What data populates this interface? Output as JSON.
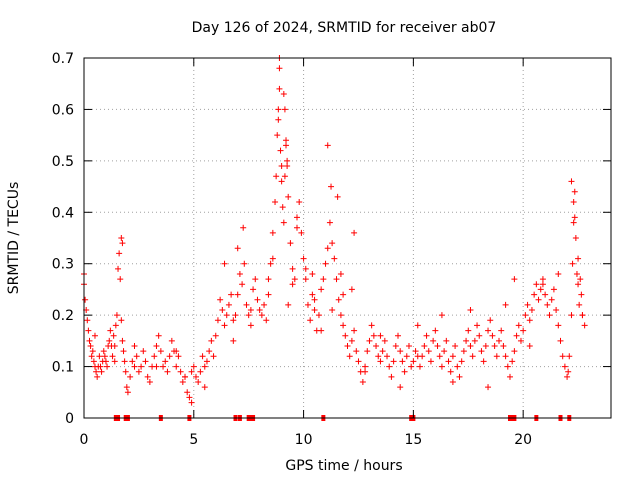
{
  "colors": {
    "series": "#ff0000",
    "grid": "#a0a0a0",
    "axis": "#000000",
    "background": "#ffffff"
  },
  "chart_data": {
    "type": "scatter",
    "title": "Day 126 of 2024, SRMTID for receiver ab07",
    "xlabel": "GPS time / hours",
    "ylabel": "SRMTID / TECUs",
    "xlim": [
      0,
      24
    ],
    "ylim": [
      0,
      0.7
    ],
    "grid": true,
    "marker": "plus",
    "xticks": [
      0,
      5,
      10,
      15,
      20
    ],
    "xtick_labels": [
      "0",
      "5",
      "10",
      "15",
      "20"
    ],
    "yticks": [
      0,
      0.1,
      0.2,
      0.3,
      0.4,
      0.5,
      0.6,
      0.7
    ],
    "ytick_labels": [
      "0",
      "0.1",
      "0.2",
      "0.3",
      "0.4",
      "0.5",
      "0.6",
      "0.7"
    ],
    "series": [
      {
        "name": "SRMTID",
        "x": [
          0.0,
          0.05,
          0.1,
          0.15,
          0.2,
          0.25,
          0.3,
          0.35,
          0.4,
          0.45,
          0.5,
          0.55,
          0.6,
          0.65,
          0.7,
          0.75,
          0.8,
          0.85,
          0.9,
          0.95,
          1.0,
          1.05,
          1.1,
          1.15,
          1.2,
          1.25,
          1.3,
          1.35,
          1.4,
          1.45,
          1.5,
          1.55,
          1.6,
          1.65,
          1.7,
          1.75,
          1.8,
          1.85,
          1.9,
          1.95,
          2.0,
          2.1,
          2.2,
          2.3,
          2.4,
          2.5,
          2.6,
          2.7,
          2.8,
          2.9,
          3.0,
          3.1,
          3.2,
          3.3,
          3.4,
          3.5,
          3.6,
          3.7,
          3.8,
          3.9,
          4.0,
          4.1,
          4.2,
          4.3,
          4.4,
          4.5,
          4.6,
          4.7,
          4.8,
          4.9,
          5.0,
          5.1,
          5.2,
          5.3,
          5.4,
          5.5,
          5.6,
          5.7,
          5.8,
          5.9,
          6.0,
          6.1,
          6.2,
          6.3,
          6.4,
          6.5,
          6.6,
          6.7,
          6.8,
          6.9,
          7.0,
          7.1,
          7.2,
          7.3,
          7.4,
          7.5,
          7.6,
          7.7,
          7.8,
          7.9,
          8.0,
          8.1,
          8.2,
          8.3,
          8.4,
          8.5,
          8.6,
          8.7,
          8.75,
          8.8,
          8.85,
          8.9,
          8.95,
          9.0,
          9.05,
          9.1,
          9.15,
          9.2,
          9.25,
          9.3,
          9.4,
          9.5,
          9.6,
          9.7,
          9.8,
          9.9,
          10.0,
          10.1,
          10.2,
          10.3,
          10.4,
          10.5,
          10.6,
          10.7,
          10.8,
          10.9,
          11.0,
          11.1,
          11.2,
          11.3,
          11.4,
          11.5,
          11.6,
          11.7,
          11.8,
          11.9,
          12.0,
          12.1,
          12.2,
          12.3,
          12.4,
          12.5,
          12.6,
          12.7,
          12.8,
          12.9,
          13.0,
          13.1,
          13.2,
          13.3,
          13.4,
          13.5,
          13.6,
          13.7,
          13.8,
          13.9,
          14.0,
          14.1,
          14.2,
          14.3,
          14.4,
          14.5,
          14.6,
          14.7,
          14.8,
          14.9,
          15.0,
          15.1,
          15.2,
          15.3,
          15.4,
          15.5,
          15.6,
          15.7,
          15.8,
          15.9,
          16.0,
          16.1,
          16.2,
          16.3,
          16.4,
          16.5,
          16.6,
          16.7,
          16.8,
          16.9,
          17.0,
          17.1,
          17.2,
          17.3,
          17.4,
          17.5,
          17.6,
          17.7,
          17.8,
          17.9,
          18.0,
          18.1,
          18.2,
          18.3,
          18.4,
          18.5,
          18.6,
          18.7,
          18.8,
          18.9,
          19.0,
          19.1,
          19.2,
          19.3,
          19.4,
          19.5,
          19.6,
          19.7,
          19.8,
          19.9,
          20.0,
          20.1,
          20.2,
          20.3,
          20.4,
          20.5,
          20.6,
          20.7,
          20.8,
          20.9,
          21.0,
          21.1,
          21.2,
          21.3,
          21.4,
          21.5,
          21.6,
          21.7,
          21.8,
          21.9,
          22.0,
          22.1,
          22.2,
          22.25,
          22.3,
          22.35,
          22.4,
          22.45,
          22.5,
          22.55,
          22.6,
          22.65,
          22.7,
          22.8,
          0.0,
          1.7,
          1.75,
          7.25,
          7.0,
          8.85,
          8.9,
          9.1,
          9.15,
          9.2,
          9.25,
          11.1,
          11.25,
          11.55,
          22.2,
          22.3,
          22.35,
          6.4,
          12.3,
          16.3,
          0.5,
          1.4,
          2.3,
          3.3,
          4.2,
          4.6,
          4.9,
          5.5,
          6.8,
          7.6,
          8.4,
          8.6,
          9.3,
          9.5,
          9.7,
          10.1,
          10.5,
          10.8,
          11.3,
          11.7,
          12.2,
          12.8,
          13.5,
          14.4,
          15.2,
          16.8,
          17.6,
          18.4,
          19.2,
          19.6,
          20.3,
          20.9,
          21.6,
          22.05,
          22.5,
          22.7,
          8.9,
          9.0,
          10.4,
          11.8
        ],
        "y": [
          0.26,
          0.23,
          0.21,
          0.19,
          0.17,
          0.15,
          0.14,
          0.12,
          0.13,
          0.11,
          0.1,
          0.09,
          0.08,
          0.1,
          0.12,
          0.1,
          0.09,
          0.11,
          0.13,
          0.12,
          0.11,
          0.1,
          0.14,
          0.15,
          0.17,
          0.14,
          0.12,
          0.16,
          0.14,
          0.18,
          0.2,
          0.29,
          0.32,
          0.27,
          0.19,
          0.15,
          0.13,
          0.11,
          0.09,
          0.06,
          0.05,
          0.08,
          0.11,
          0.1,
          0.12,
          0.09,
          0.1,
          0.13,
          0.11,
          0.08,
          0.07,
          0.1,
          0.12,
          0.14,
          0.16,
          0.13,
          0.1,
          0.11,
          0.09,
          0.12,
          0.15,
          0.13,
          0.1,
          0.12,
          0.09,
          0.07,
          0.08,
          0.05,
          0.04,
          0.09,
          0.1,
          0.08,
          0.07,
          0.09,
          0.12,
          0.1,
          0.11,
          0.13,
          0.15,
          0.12,
          0.16,
          0.19,
          0.23,
          0.21,
          0.18,
          0.2,
          0.22,
          0.24,
          0.19,
          0.2,
          0.24,
          0.28,
          0.26,
          0.3,
          0.22,
          0.2,
          0.18,
          0.25,
          0.27,
          0.23,
          0.21,
          0.2,
          0.22,
          0.19,
          0.24,
          0.3,
          0.36,
          0.42,
          0.47,
          0.55,
          0.6,
          0.64,
          0.52,
          0.46,
          0.41,
          0.38,
          0.47,
          0.53,
          0.5,
          0.43,
          0.34,
          0.29,
          0.27,
          0.37,
          0.42,
          0.36,
          0.31,
          0.27,
          0.22,
          0.19,
          0.24,
          0.21,
          0.17,
          0.2,
          0.25,
          0.27,
          0.3,
          0.33,
          0.38,
          0.34,
          0.31,
          0.27,
          0.23,
          0.2,
          0.18,
          0.16,
          0.14,
          0.12,
          0.15,
          0.17,
          0.13,
          0.11,
          0.09,
          0.07,
          0.1,
          0.13,
          0.15,
          0.18,
          0.16,
          0.14,
          0.12,
          0.11,
          0.13,
          0.15,
          0.12,
          0.1,
          0.08,
          0.11,
          0.14,
          0.16,
          0.13,
          0.11,
          0.09,
          0.12,
          0.14,
          0.1,
          0.11,
          0.13,
          0.12,
          0.1,
          0.12,
          0.14,
          0.16,
          0.13,
          0.11,
          0.15,
          0.17,
          0.14,
          0.12,
          0.1,
          0.13,
          0.15,
          0.11,
          0.09,
          0.12,
          0.14,
          0.1,
          0.08,
          0.11,
          0.13,
          0.15,
          0.17,
          0.14,
          0.12,
          0.15,
          0.18,
          0.16,
          0.13,
          0.11,
          0.14,
          0.17,
          0.19,
          0.16,
          0.14,
          0.12,
          0.15,
          0.17,
          0.14,
          0.12,
          0.1,
          0.08,
          0.11,
          0.13,
          0.16,
          0.18,
          0.15,
          0.17,
          0.2,
          0.22,
          0.19,
          0.21,
          0.24,
          0.26,
          0.23,
          0.25,
          0.27,
          0.24,
          0.22,
          0.2,
          0.23,
          0.25,
          0.21,
          0.18,
          0.15,
          0.12,
          0.1,
          0.08,
          0.12,
          0.2,
          0.3,
          0.38,
          0.44,
          0.35,
          0.28,
          0.26,
          0.22,
          0.27,
          0.24,
          0.2,
          0.18,
          0.28,
          0.35,
          0.34,
          0.37,
          0.33,
          0.58,
          0.68,
          0.63,
          0.6,
          0.54,
          0.49,
          0.53,
          0.45,
          0.43,
          0.46,
          0.42,
          0.39,
          0.3,
          0.36,
          0.2,
          0.16,
          0.11,
          0.14,
          0.1,
          0.13,
          0.08,
          0.03,
          0.06,
          0.15,
          0.21,
          0.27,
          0.31,
          0.22,
          0.26,
          0.39,
          0.29,
          0.23,
          0.17,
          0.21,
          0.28,
          0.25,
          0.09,
          0.16,
          0.06,
          0.18,
          0.07,
          0.21,
          0.06,
          0.22,
          0.27,
          0.14,
          0.26,
          0.28,
          0.09,
          0.31,
          0.2,
          0.7,
          0.49,
          0.28,
          0.24
        ]
      }
    ],
    "gap_markers_x": [
      1.45,
      1.55,
      1.9,
      2.0,
      3.5,
      4.8,
      6.9,
      7.1,
      7.5,
      7.6,
      7.7,
      10.9,
      14.9,
      15.0,
      19.4,
      19.5,
      19.6,
      20.6,
      21.7,
      22.1
    ]
  }
}
